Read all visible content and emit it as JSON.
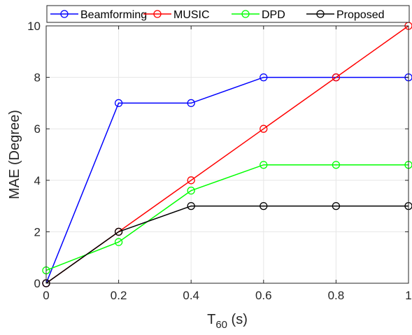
{
  "chart_data": {
    "type": "line",
    "x": [
      0,
      0.2,
      0.4,
      0.6,
      0.8,
      1
    ],
    "series": [
      {
        "name": "Beamforming",
        "color": "#0000ff",
        "values": [
          0,
          7,
          7,
          8,
          8,
          8
        ]
      },
      {
        "name": "MUSIC",
        "color": "#ff0000",
        "values": [
          0,
          2,
          4,
          6,
          8,
          10
        ]
      },
      {
        "name": "DPD",
        "color": "#00ff00",
        "values": [
          0.5,
          1.6,
          3.6,
          4.6,
          4.6,
          4.6
        ]
      },
      {
        "name": "Proposed",
        "color": "#000000",
        "values": [
          0,
          2,
          3,
          3,
          3,
          3
        ]
      }
    ],
    "xlabel_main": "T",
    "xlabel_sub": "60",
    "xlabel_unit": " (s)",
    "ylabel": "MAE (Degree)",
    "xlim": [
      0,
      1
    ],
    "ylim": [
      0,
      10
    ],
    "xticks": [
      0,
      0.2,
      0.4,
      0.6,
      0.8,
      1
    ],
    "xtick_labels": [
      "0",
      "0.2",
      "0.4",
      "0.6",
      "0.8",
      "1"
    ],
    "yticks": [
      0,
      2,
      4,
      6,
      8,
      10
    ],
    "ytick_labels": [
      "0",
      "2",
      "4",
      "6",
      "8",
      "10"
    ],
    "grid": true,
    "legend_position": "top, horizontal",
    "marker": "circle"
  }
}
